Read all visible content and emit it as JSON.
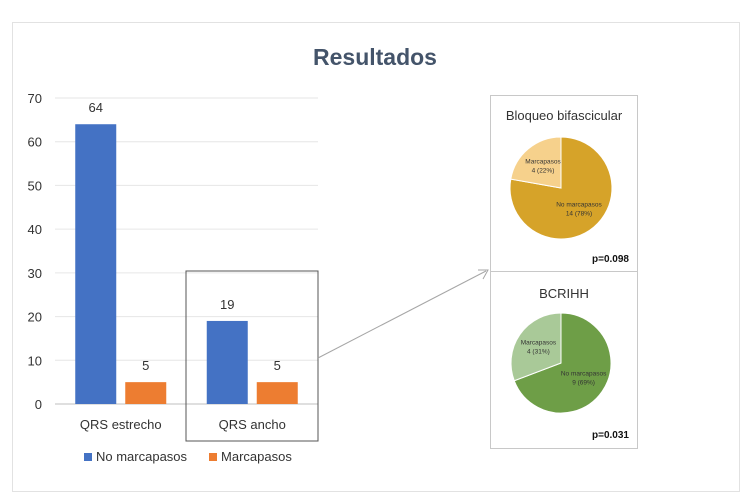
{
  "title": "Resultados",
  "colors": {
    "no_marcapasos": "#4472c4",
    "marcapasos": "#ed7d31",
    "pie1_main": "#d6a329",
    "pie1_minor": "#f6d18c",
    "pie2_main": "#6e9e47",
    "pie2_minor": "#a9c998"
  },
  "chart_data": [
    {
      "type": "bar",
      "categories": [
        "QRS estrecho",
        "QRS ancho"
      ],
      "series": [
        {
          "name": "No marcapasos",
          "values": [
            64,
            19
          ]
        },
        {
          "name": "Marcapasos",
          "values": [
            5,
            5
          ]
        }
      ],
      "ylim": [
        0,
        70
      ],
      "yticks": [
        "0",
        "10",
        "20",
        "30",
        "40",
        "50",
        "60",
        "70"
      ],
      "data_labels": true,
      "grid": true,
      "legend": "bottom-left"
    },
    {
      "type": "pie",
      "title": "Bloqueo bifascicular",
      "slices": [
        {
          "name": "No marcapasos",
          "value": 14,
          "label": "14 (78%)"
        },
        {
          "name": "Marcapasos",
          "value": 4,
          "label": "4 (22%)"
        }
      ],
      "annotation": "p=0.098"
    },
    {
      "type": "pie",
      "title": "BCRIHH",
      "slices": [
        {
          "name": "No marcapasos",
          "value": 9,
          "label": "9 (69%)"
        },
        {
          "name": "Marcapasos",
          "value": 4,
          "label": "4 (31%)"
        }
      ],
      "annotation": "p=0.031"
    }
  ]
}
